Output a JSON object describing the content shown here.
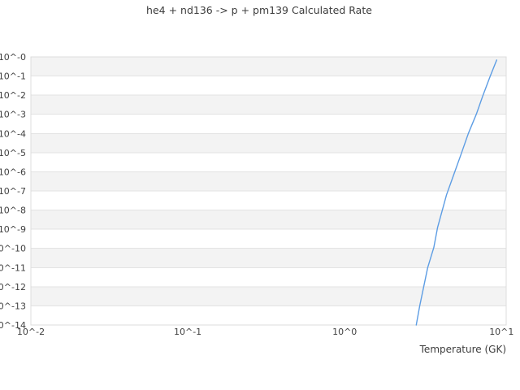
{
  "figure": {
    "title": "he4 + nd136 -> p + pm139 Calculated Rate",
    "x_axis_label": "Temperature (GK)"
  },
  "colors": {
    "background": "#ffffff",
    "band_gray": "#f3f3f3",
    "band_white": "#ffffff",
    "gridline": "#e3e3e3",
    "plot_border": "#dcdcdc",
    "text": "#3d3d3d",
    "line": "#5d9de4"
  },
  "chart_data": {
    "type": "line",
    "title": "he4 + nd136 -> p + pm139 Calculated Rate",
    "xlabel": "Temperature (GK)",
    "ylabel": "",
    "x_scale": "log",
    "y_scale": "log",
    "xlim": [
      0.01,
      10.7
    ],
    "ylim": [
      1e-14,
      1.0
    ],
    "grid": "horizontal-only",
    "background_bands": "alternating gray/white per decade",
    "legend_position": "none",
    "x_ticks": [
      {
        "label": "10^-2",
        "value": 0.01
      },
      {
        "label": "10^-1",
        "value": 0.1
      },
      {
        "label": "10^0",
        "value": 1
      },
      {
        "label": "10^1",
        "value": 10
      }
    ],
    "y_ticks": [
      {
        "label": "10^-0",
        "value": 1.0
      },
      {
        "label": "10^-1",
        "value": 0.1
      },
      {
        "label": "10^-2",
        "value": 0.01
      },
      {
        "label": "10^-3",
        "value": 0.001
      },
      {
        "label": "10^-4",
        "value": 0.0001
      },
      {
        "label": "10^-5",
        "value": 1e-05
      },
      {
        "label": "10^-6",
        "value": 1e-06
      },
      {
        "label": "10^-7",
        "value": 1e-07
      },
      {
        "label": "10^-8",
        "value": 1e-08
      },
      {
        "label": "10^-9",
        "value": 1e-09
      },
      {
        "label": "10^-10",
        "value": 1e-10
      },
      {
        "label": "10^-11",
        "value": 1e-11
      },
      {
        "label": "10^-12",
        "value": 1e-12
      },
      {
        "label": "10^-13",
        "value": 1e-13
      },
      {
        "label": "10^-14",
        "value": 1e-14
      }
    ],
    "series": [
      {
        "name": "calculated rate",
        "color": "#5d9de4",
        "x": [
          2.86,
          3.01,
          3.38,
          3.7,
          3.91,
          4.46,
          4.96,
          5.51,
          6.14,
          6.92,
          7.6,
          8.47,
          9.31
        ],
        "y": [
          1e-14,
          1e-13,
          1e-11,
          1.1e-10,
          1.26e-09,
          6.3e-08,
          7.1e-07,
          7.9e-06,
          0.0001,
          0.00105,
          0.0095,
          0.1,
          0.68
        ]
      }
    ]
  }
}
